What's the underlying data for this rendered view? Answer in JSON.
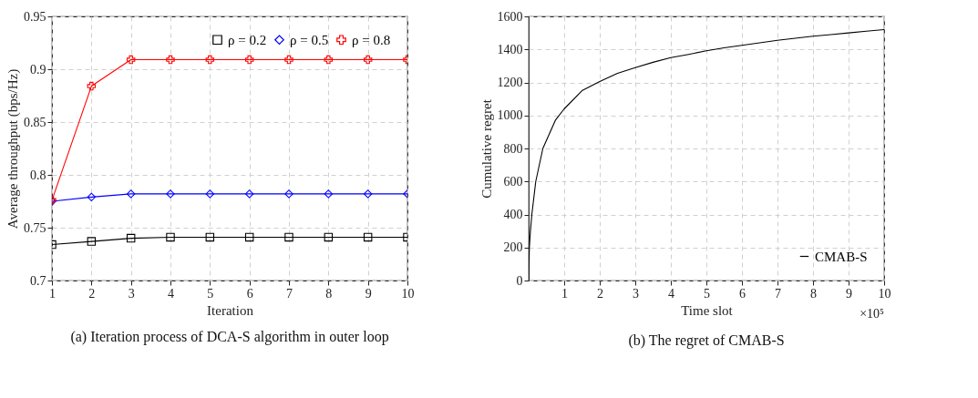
{
  "chart_data": [
    {
      "type": "line",
      "title": "(a) Iteration process of DCA-S algorithm in outer loop",
      "xlabel": "Iteration",
      "ylabel": "Average throughput (bps/Hz)",
      "x": [
        1,
        2,
        3,
        4,
        5,
        6,
        7,
        8,
        9,
        10
      ],
      "xlim": [
        1,
        10
      ],
      "xticks": [
        1,
        2,
        3,
        4,
        5,
        6,
        7,
        8,
        9,
        10
      ],
      "ylim": [
        0.7,
        0.95
      ],
      "yticks": [
        0.7,
        0.75,
        0.8,
        0.85,
        0.9,
        0.95
      ],
      "grid": true,
      "legend": "top right",
      "series": [
        {
          "name": "ρ = 0.2",
          "color": "#000000",
          "marker": "square",
          "values": [
            0.734,
            0.737,
            0.74,
            0.741,
            0.741,
            0.741,
            0.741,
            0.741,
            0.741,
            0.741
          ]
        },
        {
          "name": "ρ = 0.5",
          "color": "#0000ff",
          "marker": "diamond",
          "values": [
            0.775,
            0.779,
            0.782,
            0.782,
            0.782,
            0.782,
            0.782,
            0.782,
            0.782,
            0.782
          ]
        },
        {
          "name": "ρ = 0.8",
          "color": "#ff0000",
          "marker": "cross",
          "values": [
            0.776,
            0.884,
            0.909,
            0.909,
            0.909,
            0.909,
            0.909,
            0.909,
            0.909,
            0.909
          ]
        }
      ]
    },
    {
      "type": "line",
      "title": "(b) The regret of CMAB-S",
      "xlabel": "Time slot",
      "ylabel": "Cumulative regret",
      "xlim": [
        0,
        10
      ],
      "xticks": [
        1,
        2,
        3,
        4,
        5,
        6,
        7,
        8,
        9,
        10
      ],
      "ylim": [
        0,
        1600
      ],
      "yticks": [
        0,
        200,
        400,
        600,
        800,
        1000,
        1200,
        1400,
        1600
      ],
      "grid": true,
      "legend": "bottom right",
      "annotations": [
        "×10⁵"
      ],
      "series": [
        {
          "name": "CMAB-S",
          "color": "#000000",
          "x": [
            0,
            0.02,
            0.05,
            0.09,
            0.2,
            0.4,
            0.75,
            1,
            1.5,
            2,
            2.5,
            3,
            3.5,
            4,
            4.5,
            5,
            5.5,
            6,
            6.5,
            7,
            7.5,
            8,
            8.5,
            9,
            9.5,
            10
          ],
          "values": [
            0,
            200,
            300,
            400,
            600,
            800,
            970,
            1040,
            1150,
            1205,
            1255,
            1290,
            1322,
            1350,
            1370,
            1392,
            1410,
            1425,
            1440,
            1455,
            1468,
            1480,
            1490,
            1500,
            1510,
            1520
          ]
        }
      ]
    }
  ]
}
